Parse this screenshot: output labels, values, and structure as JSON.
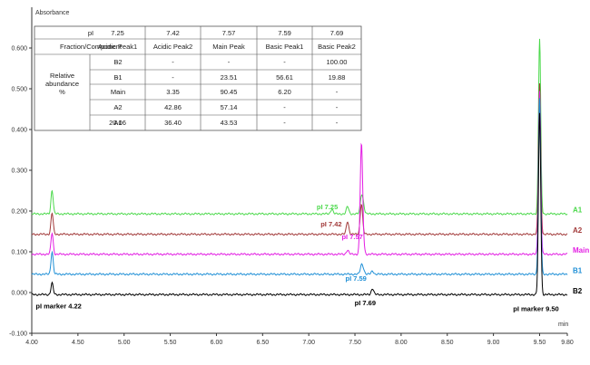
{
  "chart_data": {
    "type": "line",
    "title": "",
    "ylabel": "Absorbance",
    "xlabel": "min",
    "xlim": [
      4.0,
      9.8
    ],
    "ylim": [
      -0.1,
      0.7
    ],
    "x_ticks": [
      "4.00",
      "4.50",
      "5.00",
      "5.50",
      "6.00",
      "6.50",
      "7.00",
      "7.50",
      "8.00",
      "8.50",
      "9.00",
      "9.50",
      "9.80"
    ],
    "x_tick_values": [
      4.0,
      4.5,
      5.0,
      5.5,
      6.0,
      6.5,
      7.0,
      7.5,
      8.0,
      8.5,
      9.0,
      9.5,
      9.8
    ],
    "y_ticks": [
      "-0.100",
      "0.000",
      "0.100",
      "0.200",
      "0.300",
      "0.400",
      "0.500",
      "0.600"
    ],
    "y_tick_values": [
      -0.1,
      0.0,
      0.1,
      0.2,
      0.3,
      0.4,
      0.5,
      0.6
    ],
    "grid": false,
    "series": [
      {
        "name": "A1",
        "color": "#4cd94c",
        "baseline": 0.193,
        "peaks": [
          [
            4.22,
            0.058
          ],
          [
            7.25,
            0.012
          ],
          [
            7.42,
            0.018
          ],
          [
            7.57,
            0.04
          ],
          [
            7.59,
            0.022
          ],
          [
            9.5,
            0.43
          ]
        ]
      },
      {
        "name": "A2",
        "color": "#a23a3a",
        "baseline": 0.143,
        "peaks": [
          [
            4.22,
            0.052
          ],
          [
            7.42,
            0.032
          ],
          [
            7.57,
            0.075
          ],
          [
            9.5,
            0.37
          ]
        ]
      },
      {
        "name": "Main",
        "color": "#e31ee3",
        "baseline": 0.094,
        "peaks": [
          [
            4.22,
            0.052
          ],
          [
            7.42,
            0.01
          ],
          [
            7.57,
            0.265
          ],
          [
            7.59,
            0.02
          ],
          [
            9.5,
            0.4
          ]
        ]
      },
      {
        "name": "B1",
        "color": "#1e8fd6",
        "baseline": 0.045,
        "peaks": [
          [
            4.22,
            0.055
          ],
          [
            7.57,
            0.02
          ],
          [
            7.59,
            0.012
          ],
          [
            7.69,
            0.008
          ],
          [
            9.5,
            0.43
          ]
        ]
      },
      {
        "name": "B2",
        "color": "#000000",
        "baseline": -0.005,
        "peaks": [
          [
            4.22,
            0.028
          ],
          [
            7.69,
            0.015
          ],
          [
            9.5,
            0.445
          ]
        ]
      }
    ],
    "annotations": [
      {
        "text": "pI marker 4.22",
        "x": 4.22,
        "y": -0.005,
        "color": "#000000"
      },
      {
        "text": "pI 7.25",
        "x": 7.25,
        "y": 0.205,
        "color": "#4cd94c"
      },
      {
        "text": "pI  7.42",
        "x": 7.42,
        "y": 0.162,
        "color": "#a23a3a"
      },
      {
        "text": "pI  7.57",
        "x": 7.57,
        "y": 0.14,
        "color": "#e31ee3"
      },
      {
        "text": "pI  7.59",
        "x": 7.59,
        "y": 0.06,
        "color": "#1e8fd6"
      },
      {
        "text": "pI 7.69",
        "x": 7.69,
        "y": 0.01,
        "color": "#000000"
      },
      {
        "text": "pI marker 9.50",
        "x": 9.5,
        "y": -0.005,
        "color": "#000000"
      }
    ]
  },
  "table": {
    "header_label": "pI",
    "pi_values": [
      "7.25",
      "7.42",
      "7.57",
      "7.59",
      "7.69"
    ],
    "component_label": "Fraction/Component",
    "components": [
      "Acidic Peak1",
      "Acidic Peak2",
      "Main Peak",
      "Basic Peak1",
      "Basic Peak2"
    ],
    "group_label": [
      "Relative",
      "abundance",
      "%"
    ],
    "rows": [
      {
        "label": "B2",
        "values": [
          "-",
          "-",
          "-",
          "-",
          "100.00"
        ]
      },
      {
        "label": "B1",
        "values": [
          "-",
          "-",
          "23.51",
          "56.61",
          "19.88"
        ]
      },
      {
        "label": "Main",
        "values": [
          "-",
          "3.35",
          "90.45",
          "6.20",
          "-"
        ]
      },
      {
        "label": "A2",
        "values": [
          "-",
          "42.86",
          "57.14",
          "-",
          "-"
        ]
      },
      {
        "label": "A1",
        "values": [
          "20.06",
          "36.40",
          "43.53",
          "-",
          "-"
        ]
      }
    ]
  }
}
